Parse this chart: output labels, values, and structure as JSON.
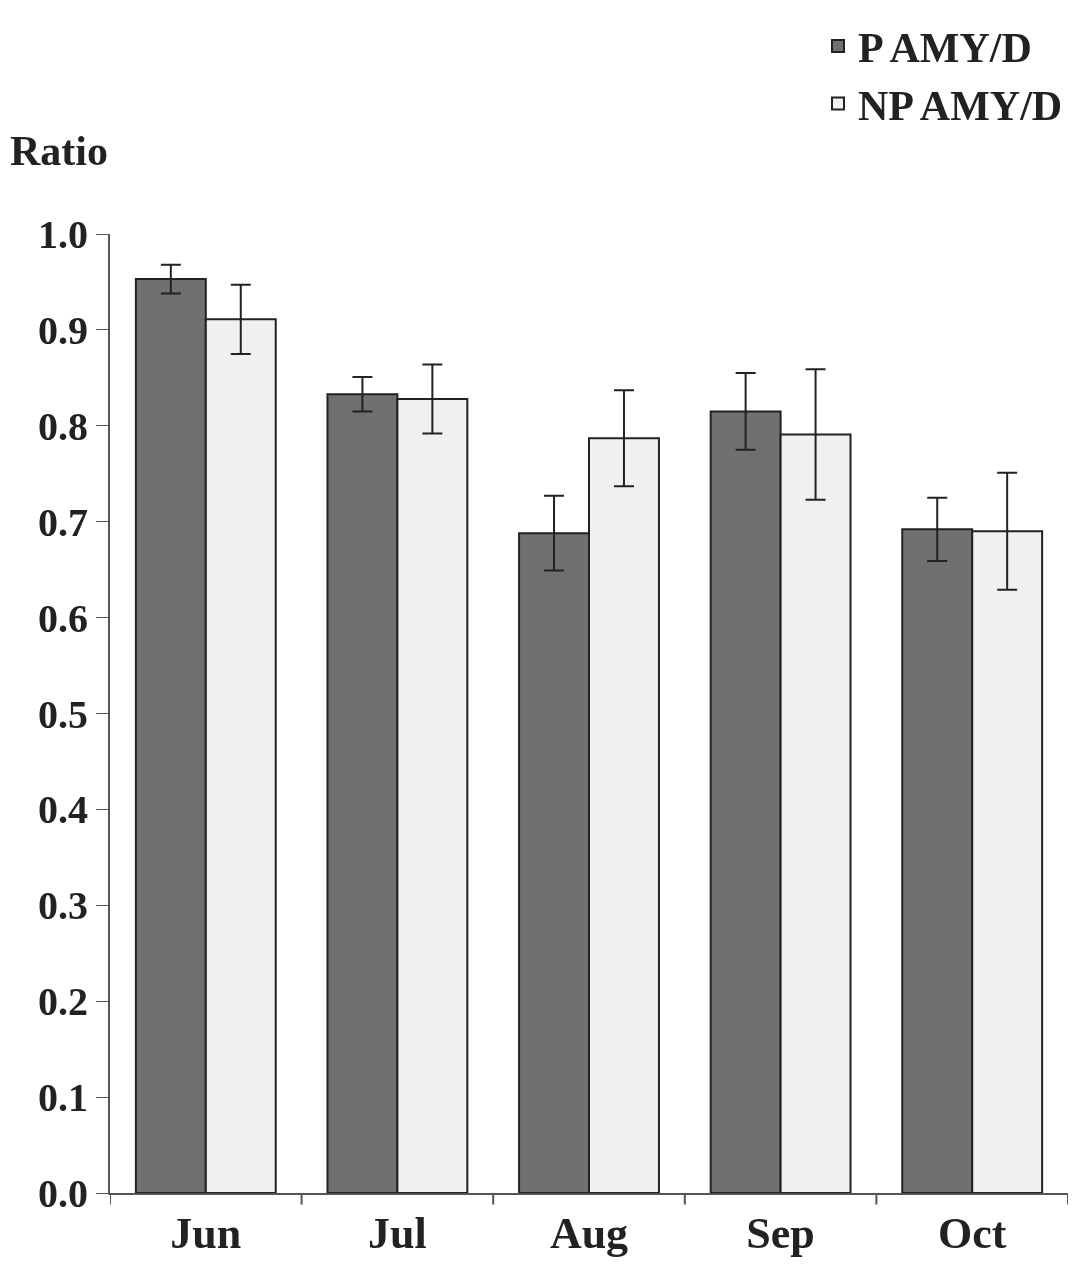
{
  "chart_data": {
    "type": "bar",
    "ylabel": "Ratio",
    "categories": [
      "Jun",
      "Jul",
      "Aug",
      "Sep",
      "Oct"
    ],
    "series": [
      {
        "name": "P AMY/D",
        "color": "#707070",
        "values": [
          0.953,
          0.833,
          0.688,
          0.815,
          0.692
        ],
        "errors": [
          0.015,
          0.018,
          0.039,
          0.04,
          0.033
        ]
      },
      {
        "name": "NP AMY/D",
        "color": "#f0f0f0",
        "values": [
          0.911,
          0.828,
          0.787,
          0.791,
          0.69
        ],
        "errors": [
          0.036,
          0.036,
          0.05,
          0.068,
          0.061
        ]
      }
    ],
    "ylim": [
      0,
      1.0
    ],
    "yticks": [
      {
        "value": 0,
        "label": "0.0"
      },
      0.1,
      0.2,
      0.3,
      0.4,
      0.5,
      0.6,
      0.7,
      0.8,
      0.9,
      {
        "value": 1,
        "label": "1.0"
      }
    ],
    "grid": false,
    "legend": "top right"
  }
}
